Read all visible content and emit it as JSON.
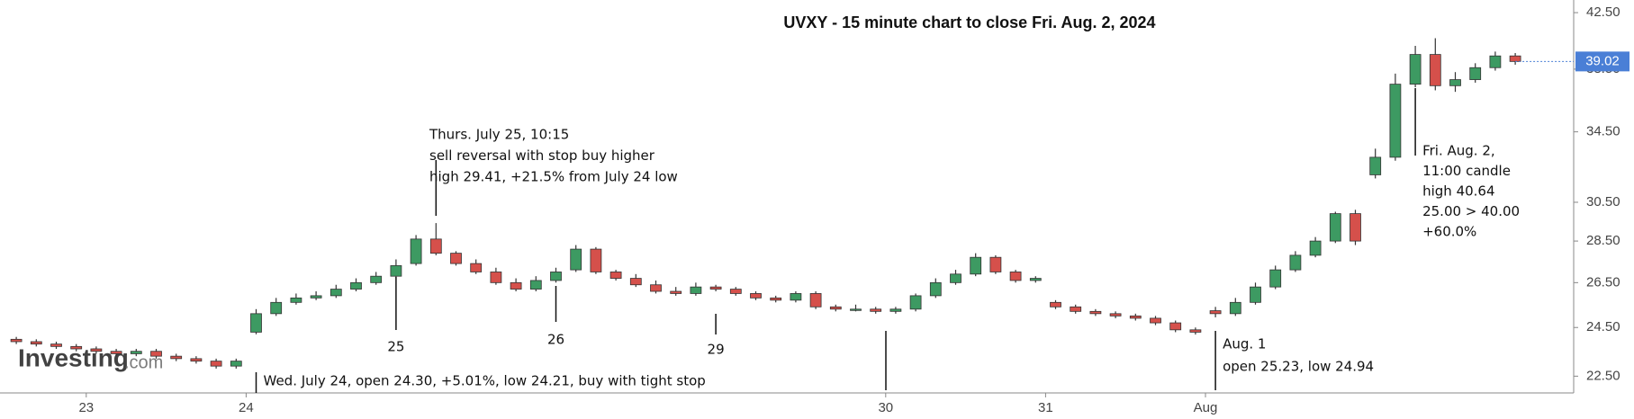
{
  "chart_data": {
    "type": "candlestick",
    "title": "UVXY - 15 minute chart to close Fri. Aug. 2, 2024",
    "watermark": {
      "name": "Investing",
      "suffix": ".com"
    },
    "categories": [
      null,
      null,
      null,
      null,
      "23",
      null,
      null,
      null,
      null,
      null,
      null,
      null,
      "24",
      null,
      null,
      null,
      null,
      null,
      null,
      null,
      null,
      null,
      null,
      null,
      null,
      null,
      null,
      null,
      null,
      null,
      null,
      null,
      null,
      null,
      null,
      null,
      null,
      null,
      null,
      null,
      null,
      null,
      null,
      null,
      "30",
      null,
      null,
      null,
      null,
      null,
      null,
      null,
      "31",
      null,
      null,
      null,
      null,
      null,
      null,
      null,
      "Aug",
      null,
      null,
      null,
      null,
      null,
      null,
      null,
      null,
      null,
      null,
      null,
      null,
      null,
      null,
      null
    ],
    "open": [
      24.0,
      23.9,
      23.8,
      23.7,
      23.6,
      23.5,
      23.4,
      23.5,
      23.3,
      23.2,
      23.1,
      22.9,
      24.3,
      25.1,
      25.6,
      25.8,
      25.9,
      26.2,
      26.5,
      26.8,
      27.4,
      28.6,
      27.9,
      27.4,
      27.0,
      26.5,
      26.2,
      26.6,
      27.1,
      28.1,
      27.0,
      26.7,
      26.4,
      26.1,
      26.0,
      26.3,
      26.2,
      26.0,
      25.8,
      25.7,
      26.0,
      25.4,
      25.3,
      25.3,
      25.2,
      25.3,
      25.9,
      26.5,
      26.9,
      27.7,
      27.0,
      26.6,
      25.6,
      25.4,
      25.2,
      25.1,
      25.0,
      24.9,
      24.7,
      24.4,
      25.23,
      25.1,
      25.6,
      26.3,
      27.1,
      27.8,
      28.5,
      29.9,
      32.0,
      33.0,
      37.5,
      39.5,
      37.4,
      37.8,
      38.6,
      39.4
    ],
    "high": [
      24.1,
      24.0,
      23.9,
      23.8,
      23.7,
      23.6,
      23.6,
      23.6,
      23.4,
      23.3,
      23.2,
      23.2,
      25.3,
      25.8,
      26.0,
      26.1,
      26.4,
      26.7,
      27.0,
      27.6,
      28.8,
      29.41,
      28.0,
      27.6,
      27.2,
      26.7,
      26.8,
      27.2,
      28.3,
      28.2,
      27.1,
      26.9,
      26.6,
      26.3,
      26.5,
      26.4,
      26.3,
      26.1,
      25.9,
      26.1,
      26.1,
      25.5,
      25.5,
      25.4,
      25.4,
      26.0,
      26.7,
      27.1,
      27.9,
      27.8,
      27.1,
      26.8,
      25.7,
      25.5,
      25.3,
      25.2,
      25.1,
      25.0,
      24.8,
      24.5,
      25.4,
      25.8,
      26.5,
      27.3,
      28.0,
      28.7,
      30.0,
      30.1,
      33.5,
      38.2,
      40.1,
      40.64,
      38.3,
      38.9,
      39.7,
      39.6
    ],
    "low": [
      23.8,
      23.7,
      23.6,
      23.5,
      23.4,
      23.3,
      23.3,
      23.2,
      23.1,
      23.0,
      22.8,
      22.8,
      24.21,
      25.0,
      25.5,
      25.7,
      25.8,
      26.1,
      26.4,
      26.7,
      27.3,
      27.8,
      27.3,
      26.9,
      26.4,
      26.1,
      26.1,
      26.5,
      27.0,
      26.9,
      26.6,
      26.3,
      26.0,
      25.9,
      25.9,
      26.1,
      25.9,
      25.7,
      25.6,
      25.6,
      25.3,
      25.2,
      25.2,
      25.1,
      25.1,
      25.2,
      25.8,
      26.4,
      26.8,
      26.9,
      26.5,
      26.5,
      25.3,
      25.1,
      25.0,
      24.9,
      24.8,
      24.6,
      24.3,
      24.2,
      24.94,
      25.0,
      25.5,
      26.2,
      27.0,
      27.7,
      28.4,
      28.3,
      31.8,
      32.8,
      37.3,
      37.1,
      37.0,
      37.6,
      38.4,
      38.8
    ],
    "close": [
      23.9,
      23.8,
      23.7,
      23.6,
      23.5,
      23.4,
      23.5,
      23.3,
      23.2,
      23.1,
      22.9,
      23.1,
      25.1,
      25.6,
      25.8,
      25.9,
      26.2,
      26.5,
      26.8,
      27.3,
      28.6,
      27.9,
      27.4,
      27.0,
      26.5,
      26.2,
      26.6,
      27.0,
      28.1,
      27.0,
      26.7,
      26.4,
      26.1,
      26.0,
      26.3,
      26.2,
      26.0,
      25.8,
      25.7,
      26.0,
      25.4,
      25.3,
      25.3,
      25.2,
      25.3,
      25.9,
      26.5,
      26.9,
      27.7,
      27.0,
      26.6,
      26.7,
      25.4,
      25.2,
      25.1,
      25.0,
      24.9,
      24.7,
      24.4,
      24.3,
      25.1,
      25.6,
      26.3,
      27.1,
      27.8,
      28.5,
      29.9,
      28.5,
      33.0,
      37.5,
      39.5,
      37.4,
      37.8,
      38.6,
      39.4,
      39.02
    ],
    "up_color": "#3d9a62",
    "down_color": "#d5504b",
    "last_price": 39.02,
    "last_price_color": "#4a7fd6",
    "y_scale": "log",
    "ylim": [
      21.85,
      43.45
    ],
    "yticks": [
      {
        "value": 22.5,
        "label": "22.50"
      },
      {
        "value": 24.5,
        "label": "24.50"
      },
      {
        "value": 26.5,
        "label": "26.50"
      },
      {
        "value": 28.5,
        "label": "28.50"
      },
      {
        "value": 30.5,
        "label": "30.50"
      },
      {
        "value": 34.5,
        "label": "34.50"
      },
      {
        "value": 38.5,
        "label": "38.50"
      },
      {
        "value": 42.5,
        "label": "42.50"
      }
    ],
    "grid": false,
    "annotations": [
      {
        "lines": [
          "Thurs. July 25, 10:15",
          "sell reversal with stop buy higher",
          "high 29.41, +21.5% from July 24 low"
        ]
      },
      {
        "lines": [
          "25"
        ]
      },
      {
        "lines": [
          "26"
        ]
      },
      {
        "lines": [
          "29"
        ]
      },
      {
        "lines": [
          "Wed. July 24, open 24.30, +5.01%, low 24.21, buy with tight stop"
        ]
      },
      {
        "lines": [
          "Aug. 1",
          "open 25.23, low 24.94"
        ]
      },
      {
        "lines": [
          "Fri. Aug. 2,",
          "11:00 candle",
          "high 40.64",
          "25.00 > 40.00",
          "+60.0%"
        ]
      }
    ]
  }
}
